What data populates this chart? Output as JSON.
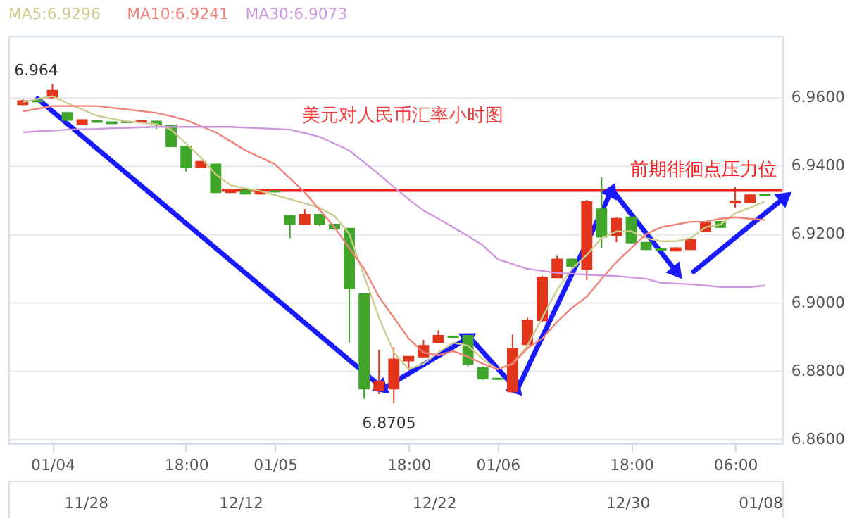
{
  "chart_data": [
    {
      "type": "candlestick",
      "title": "美元对人民币汇率小时图",
      "categories": [
        null,
        null,
        "01/04",
        null,
        null,
        null,
        null,
        null,
        null,
        null,
        null,
        "18:00",
        null,
        null,
        null,
        null,
        null,
        "01/05",
        null,
        null,
        null,
        null,
        null,
        null,
        null,
        null,
        "18:00",
        null,
        null,
        null,
        null,
        null,
        "01/06",
        null,
        null,
        null,
        null,
        null,
        null,
        null,
        null,
        "18:00",
        null,
        null,
        null,
        null,
        null,
        null,
        "06:00",
        null,
        null
      ],
      "ohlc": [
        [
          6.958,
          6.9595,
          6.9577,
          6.959
        ],
        [
          6.9592,
          6.9594,
          6.9586,
          6.9588
        ],
        [
          6.96,
          6.964,
          6.9598,
          6.962
        ],
        [
          6.9555,
          6.9557,
          6.953,
          6.9534
        ],
        [
          6.9522,
          6.9536,
          6.952,
          6.9534
        ],
        [
          6.9531,
          6.9532,
          6.9527,
          6.9528
        ],
        [
          6.9528,
          6.9529,
          6.9523,
          6.9524
        ],
        [
          6.9529,
          6.953,
          6.9526,
          6.9527
        ],
        [
          6.9528,
          6.9532,
          6.9527,
          6.9531
        ],
        [
          6.953,
          6.9532,
          6.9508,
          6.952
        ],
        [
          6.9518,
          6.952,
          6.9455,
          6.9457
        ],
        [
          6.9457,
          6.9459,
          6.9383,
          6.9396
        ],
        [
          6.9396,
          6.9414,
          6.9394,
          6.9412
        ],
        [
          6.9404,
          6.9406,
          6.932,
          6.9322
        ],
        [
          6.9322,
          6.9332,
          6.932,
          6.933
        ],
        [
          6.9328,
          6.933,
          6.9316,
          6.9318
        ],
        [
          6.9318,
          6.9332,
          6.9316,
          6.933
        ],
        [
          6.9326,
          6.9328,
          6.9322,
          6.9324
        ],
        [
          6.9253,
          6.9255,
          6.9188,
          6.9228
        ],
        [
          6.9228,
          6.9273,
          6.9226,
          6.9257
        ],
        [
          6.9257,
          6.9259,
          6.9224,
          6.9228
        ],
        [
          6.9228,
          6.923,
          6.9212,
          6.9216
        ],
        [
          6.9216,
          6.9218,
          6.8882,
          6.9041
        ],
        [
          6.9024,
          6.9026,
          6.8718,
          6.8747
        ],
        [
          6.8743,
          6.8861,
          6.8731,
          6.8767
        ],
        [
          6.8747,
          6.8869,
          6.8705,
          6.8833
        ],
        [
          6.8829,
          6.8843,
          6.88,
          6.8841
        ],
        [
          6.8841,
          6.889,
          6.8839,
          6.8873
        ],
        [
          6.8882,
          6.8918,
          6.888,
          6.8902
        ],
        [
          6.89,
          6.8902,
          6.8896,
          6.8898
        ],
        [
          6.8902,
          6.8904,
          6.8812,
          6.882
        ],
        [
          6.8808,
          6.8812,
          6.8773,
          6.8777
        ],
        [
          6.8777,
          6.8779,
          6.8773,
          6.8775
        ],
        [
          6.8739,
          6.8906,
          6.8735,
          6.8865
        ],
        [
          6.8877,
          6.8955,
          6.887,
          6.8947
        ],
        [
          6.8947,
          6.9078,
          6.8943,
          6.9073
        ],
        [
          6.9073,
          6.9136,
          6.9071,
          6.9126
        ],
        [
          6.9126,
          6.9128,
          6.9104,
          6.9106
        ],
        [
          6.9098,
          6.93,
          6.9065,
          6.9294
        ],
        [
          6.9273,
          6.9367,
          6.916,
          6.9192
        ],
        [
          6.9196,
          6.925,
          6.9176,
          6.9245
        ],
        [
          6.9249,
          6.9251,
          6.9173,
          6.9175
        ],
        [
          6.9175,
          6.9177,
          6.9153,
          6.9155
        ],
        [
          6.9157,
          6.9159,
          6.9151,
          6.9153
        ],
        [
          6.9151,
          6.9161,
          6.9149,
          6.9159
        ],
        [
          6.9155,
          6.9185,
          6.9153,
          6.9183
        ],
        [
          6.9208,
          6.9234,
          6.9206,
          6.9232
        ],
        [
          6.9236,
          6.9238,
          6.9218,
          6.922
        ],
        [
          6.9292,
          6.9338,
          6.9277,
          6.9296
        ],
        [
          6.9294,
          6.9316,
          6.9292,
          6.9314
        ],
        [
          6.9315,
          6.9317,
          6.9311,
          6.9313
        ]
      ],
      "colors": [
        "#e3341c",
        "#3fa62a",
        "#e3341c",
        "#3fa62a",
        "#e3341c",
        "#3fa62a",
        "#3fa62a",
        "#3fa62a",
        "#e3341c",
        "#3fa62a",
        "#3fa62a",
        "#3fa62a",
        "#e3341c",
        "#3fa62a",
        "#e3341c",
        "#3fa62a",
        "#e3341c",
        "#3fa62a",
        "#3fa62a",
        "#e3341c",
        "#3fa62a",
        "#3fa62a",
        "#3fa62a",
        "#3fa62a",
        "#e3341c",
        "#e3341c",
        "#e3341c",
        "#e3341c",
        "#e3341c",
        "#3fa62a",
        "#3fa62a",
        "#3fa62a",
        "#3fa62a",
        "#e3341c",
        "#e3341c",
        "#e3341c",
        "#e3341c",
        "#3fa62a",
        "#e3341c",
        "#3fa62a",
        "#e3341c",
        "#3fa62a",
        "#3fa62a",
        "#3fa62a",
        "#e3341c",
        "#e3341c",
        "#e3341c",
        "#3fa62a",
        "#e3341c",
        "#e3341c",
        "#3fa62a"
      ],
      "series": [
        {
          "name": "MA5:6.9296",
          "type": "line",
          "color": "#cdcb8e",
          "values": [
            6.9587,
            6.9596,
            6.9604,
            6.9583,
            6.9565,
            6.9547,
            6.9538,
            6.953,
            6.9526,
            6.9522,
            6.9506,
            6.9465,
            6.9424,
            6.9375,
            6.9343,
            6.9334,
            6.9326,
            6.9314,
            6.9302,
            6.929,
            6.9277,
            6.9253,
            6.92,
            6.9077,
            6.8955,
            6.8853,
            6.8804,
            6.882,
            6.8853,
            6.8882,
            6.8873,
            6.8833,
            6.8804,
            6.882,
            6.8873,
            6.8955,
            6.9037,
            6.9098,
            6.9139,
            6.9188,
            6.9208,
            6.9208,
            6.9188,
            6.9179,
            6.9179,
            6.9188,
            6.922,
            6.9228,
            6.9261,
            6.9277,
            6.9296
          ]
        },
        {
          "name": "MA10:6.9241",
          "type": "line",
          "color": "#f2817a",
          "values": [
            6.9559,
            6.9567,
            6.9575,
            6.9575,
            6.9575,
            6.9575,
            6.957,
            6.9565,
            6.956,
            6.9555,
            6.9545,
            6.9534,
            6.9516,
            6.9498,
            6.9472,
            6.9445,
            6.9425,
            6.9404,
            6.9363,
            6.9322,
            6.9271,
            6.922,
            6.9159,
            6.9098,
            6.9016,
            6.8955,
            6.8894,
            6.8853,
            6.8845,
            6.8857,
            6.8841,
            6.882,
            6.8804,
            6.882,
            6.8865,
            6.8894,
            6.8943,
            6.8984,
            6.9016,
            6.9069,
            6.9118,
            6.9159,
            6.92,
            6.922,
            6.9228,
            6.9236,
            6.9236,
            6.9245,
            6.9249,
            6.9245,
            6.9241
          ]
        },
        {
          "name": "MA30:6.9073",
          "type": "line",
          "color": "#cf97e0",
          "values": [
            6.9498,
            6.9501,
            6.9503,
            6.9506,
            6.9507,
            6.9508,
            6.951,
            6.9511,
            6.9513,
            6.9514,
            6.9514,
            6.9514,
            6.9514,
            6.9514,
            6.9514,
            6.9512,
            6.951,
            6.9508,
            6.9506,
            6.9496,
            6.9485,
            6.9465,
            6.9445,
            6.941,
            6.9375,
            6.9338,
            6.9302,
            6.9269,
            6.9245,
            6.922,
            6.9194,
            6.9167,
            6.9126,
            6.9112,
            6.9098,
            6.9092,
            6.9086,
            6.9084,
            6.9081,
            6.9079,
            6.9077,
            6.9073,
            6.9069,
            6.9057,
            6.9055,
            6.9053,
            6.9049,
            6.9045,
            6.9045,
            6.9045,
            6.9049
          ]
        }
      ],
      "ref_lines": [
        {
          "axis": "y",
          "value": 6.9328,
          "label": "前期徘徊点压力位",
          "color": "#ff1a1a"
        }
      ],
      "annotations": [
        "6.964",
        {
          "text": "6.8705",
          "y": 6.8705
        }
      ],
      "ylim": [
        6.8588,
        6.978
      ],
      "yticks": [
        {
          "value": 6.86,
          "label": "6.8600"
        },
        {
          "value": 6.88,
          "label": "6.8800"
        },
        {
          "value": 6.9,
          "label": "6.9000"
        },
        {
          "value": 6.92,
          "label": "6.9200"
        },
        {
          "value": 6.94,
          "label": "6.9400"
        },
        {
          "value": 6.96,
          "label": "6.9600"
        }
      ],
      "grid": "y",
      "legend": "top left"
    },
    {
      "type": "other",
      "categories": [
        null,
        null,
        "11/28",
        null,
        null,
        null,
        "12/12",
        null,
        null,
        null,
        null,
        "12/22",
        null,
        null,
        null,
        null,
        "12/30",
        null,
        null,
        null,
        "01/08"
      ]
    }
  ]
}
